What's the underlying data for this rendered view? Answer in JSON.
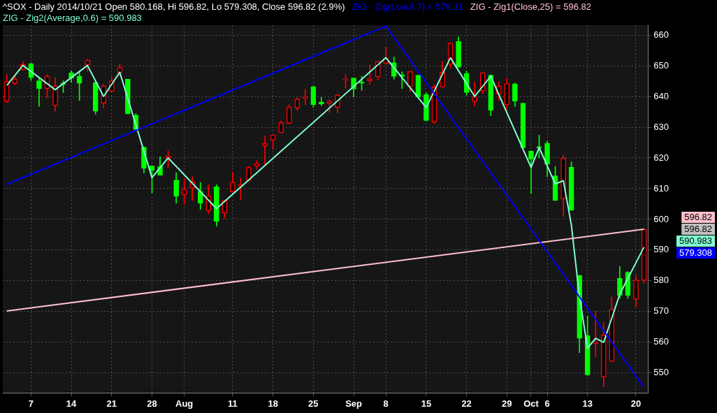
{
  "chart_data": {
    "type": "candlestick",
    "title": "^SOX - Daily 2014/10/21 Open 580.168, Hi 596.82, Lo 579.308, Close 596.82 (2.9%)",
    "categories": [
      null,
      null,
      null,
      "7",
      null,
      null,
      null,
      null,
      "14",
      null,
      null,
      null,
      null,
      "21",
      null,
      null,
      null,
      null,
      "28",
      null,
      null,
      null,
      "Aug",
      null,
      null,
      null,
      null,
      null,
      "11",
      null,
      null,
      null,
      null,
      "18",
      null,
      null,
      null,
      null,
      "25",
      null,
      null,
      null,
      null,
      "Sep",
      null,
      null,
      null,
      "8",
      null,
      null,
      null,
      null,
      "15",
      null,
      null,
      null,
      null,
      "22",
      null,
      null,
      null,
      null,
      "29",
      null,
      null,
      "Oct",
      null,
      "6",
      null,
      null,
      null,
      null,
      "13",
      null,
      null,
      null,
      null,
      null,
      "20",
      null
    ],
    "ohlc": [
      [
        638.3,
        647.2,
        638.0,
        644.9
      ],
      [
        644.2,
        647.2,
        643.8,
        645.7
      ],
      [
        648.7,
        651.4,
        648.5,
        650.4
      ],
      [
        650.7,
        650.9,
        645.2,
        646.1
      ],
      [
        645.1,
        645.8,
        636.8,
        642.5
      ],
      [
        642.6,
        647.1,
        639.6,
        646.6
      ],
      [
        637.0,
        646.2,
        635.2,
        643.5
      ],
      [
        644.0,
        645.1,
        641.3,
        643.9
      ],
      [
        647.7,
        648.4,
        644.5,
        646.0
      ],
      [
        646.6,
        648.2,
        638.7,
        644.3
      ],
      [
        650.3,
        652.1,
        648.2,
        651.8
      ],
      [
        644.5,
        645.3,
        634.2,
        635.2
      ],
      [
        637.8,
        644.0,
        636.3,
        643.5
      ],
      [
        641.7,
        646.4,
        641.5,
        645.1
      ],
      [
        647.7,
        650.5,
        646.5,
        649.4
      ],
      [
        645.6,
        645.6,
        634.3,
        634.4
      ],
      [
        633.9,
        634.5,
        628.7,
        629.2
      ],
      [
        623.5,
        623.5,
        615.1,
        616.6
      ],
      [
        617.4,
        617.4,
        608.6,
        615.9
      ],
      [
        617.2,
        620.4,
        614.4,
        614.4
      ],
      [
        619.9,
        622.3,
        616.9,
        620.6
      ],
      [
        612.8,
        615.2,
        605.3,
        607.5
      ],
      [
        608.0,
        613.3,
        604.8,
        609.8
      ],
      [
        610.2,
        613.9,
        606.1,
        612.3
      ],
      [
        609.1,
        612.0,
        603.2,
        605.3
      ],
      [
        602.8,
        611.3,
        601.9,
        607.7
      ],
      [
        610.6,
        611.3,
        597.8,
        599.3
      ],
      [
        602.0,
        606.3,
        600.4,
        606.2
      ],
      [
        608.9,
        615.3,
        608.8,
        612.1
      ],
      [
        610.8,
        613.5,
        606.4,
        611.3
      ],
      [
        612.6,
        617.2,
        612.5,
        616.9
      ],
      [
        617.3,
        619.1,
        616.4,
        618.2
      ],
      [
        623.8,
        627.1,
        617.6,
        624.7
      ],
      [
        625.8,
        627.5,
        622.8,
        627.5
      ],
      [
        628.2,
        632.1,
        628.1,
        631.5
      ],
      [
        631.2,
        637.3,
        631.1,
        636.6
      ],
      [
        636.2,
        639.5,
        635.5,
        639.2
      ],
      [
        639.4,
        642.3,
        637.3,
        639.9
      ],
      [
        643.2,
        643.2,
        636.5,
        637.3
      ],
      [
        638.2,
        639.7,
        637.0,
        637.5
      ],
      [
        637.8,
        638.8,
        634.8,
        638.6
      ],
      [
        636.4,
        640.8,
        634.6,
        640.5
      ],
      [
        645.2,
        647.1,
        642.7,
        645.3
      ],
      [
        646.0,
        646.0,
        639.8,
        642.4
      ],
      [
        644.4,
        646.6,
        642.0,
        644.3
      ],
      [
        645.1,
        650.3,
        644.0,
        645.8
      ],
      [
        646.4,
        651.5,
        645.4,
        651.4
      ],
      [
        650.7,
        656.0,
        650.6,
        652.4
      ],
      [
        651.0,
        652.9,
        645.6,
        646.5
      ],
      [
        646.6,
        648.0,
        642.6,
        646.5
      ],
      [
        643.2,
        648.2,
        641.6,
        648.1
      ],
      [
        646.9,
        646.9,
        639.7,
        639.8
      ],
      [
        640.6,
        641.2,
        632.0,
        632.2
      ],
      [
        631.6,
        643.8,
        631.2,
        643.1
      ],
      [
        643.1,
        651.4,
        643.0,
        647.9
      ],
      [
        650.5,
        657.5,
        649.2,
        657.4
      ],
      [
        657.9,
        659.4,
        649.4,
        649.5
      ],
      [
        647.5,
        648.3,
        640.4,
        641.3
      ],
      [
        638.3,
        644.7,
        636.8,
        639.9
      ],
      [
        641.8,
        647.8,
        640.9,
        647.7
      ],
      [
        646.9,
        647.1,
        633.7,
        635.5
      ],
      [
        640.7,
        644.9,
        638.7,
        643.4
      ],
      [
        637.3,
        646.0,
        635.8,
        644.2
      ],
      [
        644.0,
        644.4,
        636.8,
        638.5
      ],
      [
        637.8,
        637.8,
        623.2,
        623.3
      ],
      [
        622.2,
        622.3,
        608.4,
        619.6
      ],
      [
        623.3,
        627.4,
        620.0,
        623.2
      ],
      [
        624.8,
        625.5,
        613.9,
        617.9
      ],
      [
        614.2,
        617.2,
        606.1,
        606.2
      ],
      [
        606.7,
        620.9,
        600.9,
        619.9
      ],
      [
        617.0,
        618.7,
        602.9,
        603.0
      ],
      [
        581.8,
        581.9,
        556.6,
        561.3
      ],
      [
        562.2,
        568.5,
        549.3,
        549.4
      ],
      [
        559.6,
        570.1,
        555.2,
        559.7
      ],
      [
        548.7,
        566.4,
        545.6,
        562.4
      ],
      [
        553.8,
        574.9,
        553.7,
        570.7
      ],
      [
        580.8,
        584.7,
        574.3,
        575.3
      ],
      [
        582.8,
        583.0,
        574.3,
        575.3
      ],
      [
        574.0,
        581.8,
        571.4,
        580.3
      ],
      [
        580.168,
        596.82,
        579.308,
        596.82
      ]
    ],
    "colors": [
      "#ff0000",
      "#ff0000",
      "#ff0000",
      "#00ff00",
      "#00ff00",
      "#ff0000",
      "#ff0000",
      "#00ff00",
      "#00ff00",
      "#00ff00",
      "#ff0000",
      "#00ff00",
      "#ff0000",
      "#ff0000",
      "#ff0000",
      "#00ff00",
      "#00ff00",
      "#00ff00",
      "#00ff00",
      "#00ff00",
      "#ff0000",
      "#00ff00",
      "#ff0000",
      "#ff0000",
      "#00ff00",
      "#ff0000",
      "#00ff00",
      "#ff0000",
      "#ff0000",
      "#ff0000",
      "#ff0000",
      "#ff0000",
      "#ff0000",
      "#ff0000",
      "#ff0000",
      "#ff0000",
      "#ff0000",
      "#ff0000",
      "#00ff00",
      "#00ff00",
      "#ff0000",
      "#ff0000",
      "#ff0000",
      "#00ff00",
      "#00ff00",
      "#ff0000",
      "#ff0000",
      "#ff0000",
      "#00ff00",
      "#00ff00",
      "#ff0000",
      "#00ff00",
      "#00ff00",
      "#ff0000",
      "#ff0000",
      "#ff0000",
      "#00ff00",
      "#00ff00",
      "#ff0000",
      "#ff0000",
      "#00ff00",
      "#ff0000",
      "#ff0000",
      "#00ff00",
      "#00ff00",
      "#00ff00",
      "#00ff00",
      "#00ff00",
      "#00ff00",
      "#ff0000",
      "#00ff00",
      "#00ff00",
      "#00ff00",
      "#ff0000",
      "#ff0000",
      "#ff0000",
      "#00ff00",
      "#00ff00",
      "#ff0000",
      "#ff0000"
    ],
    "series": [
      {
        "name": "ZIG - Zig(Low,8.7) = 579.31",
        "type": "line",
        "color": "#0000ff",
        "values": [
          611.4,
          null,
          null,
          null,
          null,
          null,
          null,
          null,
          null,
          null,
          null,
          null,
          null,
          null,
          null,
          null,
          null,
          null,
          null,
          null,
          null,
          null,
          null,
          null,
          null,
          null,
          null,
          null,
          null,
          null,
          null,
          null,
          null,
          null,
          null,
          null,
          null,
          null,
          null,
          null,
          null,
          null,
          null,
          null,
          null,
          null,
          null,
          662.9,
          null,
          null,
          null,
          null,
          null,
          null,
          null,
          null,
          null,
          null,
          null,
          null,
          null,
          null,
          null,
          null,
          null,
          null,
          null,
          null,
          null,
          null,
          null,
          null,
          null,
          null,
          null,
          null,
          null,
          null,
          null,
          545.4
        ]
      },
      {
        "name": "ZIG - Zig1(Close,25) = 596.82",
        "type": "line",
        "color": "#ffc0cb",
        "values": [
          570.2,
          null,
          null,
          null,
          null,
          null,
          null,
          null,
          null,
          null,
          null,
          null,
          null,
          null,
          null,
          null,
          null,
          null,
          null,
          null,
          null,
          null,
          null,
          null,
          null,
          null,
          null,
          null,
          null,
          null,
          null,
          null,
          null,
          null,
          null,
          null,
          null,
          null,
          null,
          null,
          null,
          null,
          null,
          null,
          null,
          null,
          null,
          null,
          null,
          null,
          null,
          null,
          null,
          null,
          null,
          null,
          null,
          null,
          null,
          null,
          null,
          null,
          null,
          null,
          null,
          null,
          null,
          null,
          null,
          null,
          null,
          null,
          null,
          null,
          null,
          null,
          null,
          null,
          null,
          596.82
        ]
      },
      {
        "name": "ZIG - Zig2(Average,0.6) = 590.983",
        "type": "line",
        "color": "#7fffd4",
        "values": [
          643.6,
          null,
          650.1,
          null,
          null,
          null,
          642.2,
          null,
          null,
          null,
          650.1,
          null,
          640.0,
          null,
          647.9,
          null,
          null,
          null,
          613.6,
          null,
          620.0,
          null,
          null,
          null,
          null,
          null,
          603.5,
          null,
          null,
          null,
          null,
          null,
          null,
          null,
          null,
          null,
          null,
          null,
          null,
          null,
          null,
          null,
          null,
          null,
          null,
          null,
          null,
          652.6,
          null,
          null,
          null,
          null,
          636.4,
          null,
          null,
          652.6,
          null,
          null,
          640.0,
          null,
          646.6,
          null,
          null,
          null,
          null,
          616.9,
          623.4,
          null,
          611.5,
          612.6,
          598.1,
          574.8,
          558.1,
          561.3,
          560.0,
          567.8,
          575.7,
          null,
          null,
          590.983
        ]
      }
    ],
    "ylim": [
      543.5,
      663.2
    ],
    "yticks": [
      550,
      560,
      570,
      580,
      590,
      600,
      610,
      620,
      630,
      640,
      650,
      660
    ],
    "grid": true,
    "legend": "top left",
    "marker": "none",
    "annotations": [
      "596.82",
      "596.82",
      "590.983",
      "579.308"
    ]
  }
}
